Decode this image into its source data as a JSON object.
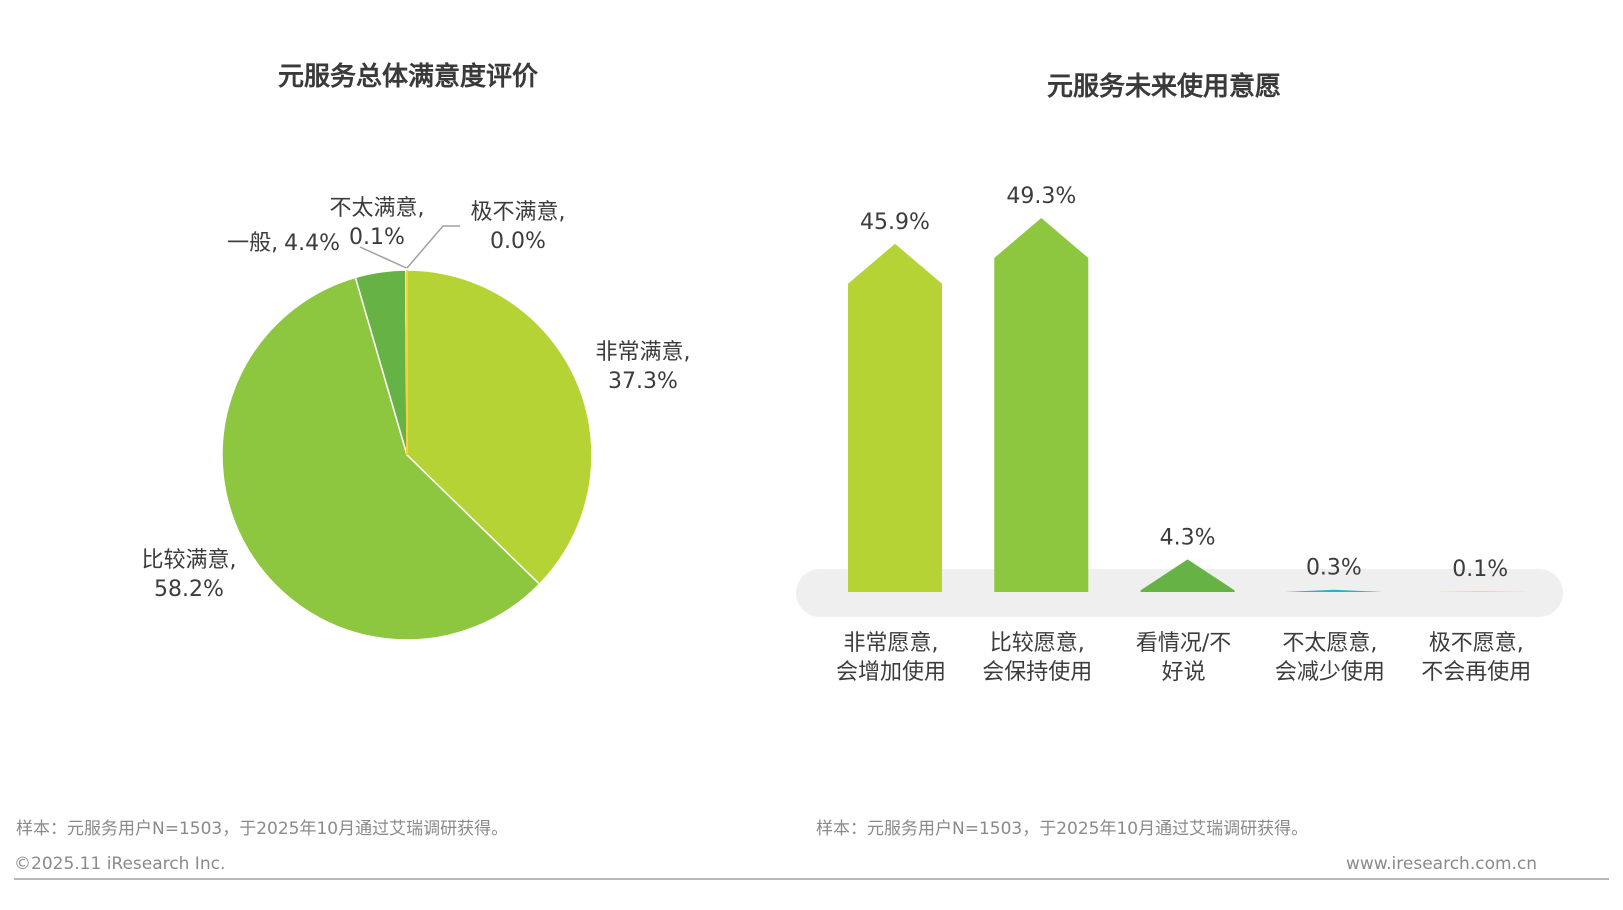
{
  "colors": {
    "very_satisfied": "#b5d334",
    "fairly_satisfied": "#8dc63f",
    "neutral": "#66b245",
    "not_satisfied": "#27b3c9",
    "very_unsatisfied": "#f6cf3c",
    "platform": "#efefef",
    "leader_line": "#a0a0a0"
  },
  "chart_data": [
    {
      "type": "pie",
      "title": "元服务总体满意度评价",
      "slices": [
        {
          "key": "very_satisfied",
          "name": "非常满意,",
          "value": 37.3,
          "value_label": "37.3%"
        },
        {
          "key": "fairly_satisfied",
          "name": "比较满意,",
          "value": 58.2,
          "value_label": "58.2%"
        },
        {
          "key": "neutral",
          "name": "一般,",
          "value": 4.4,
          "value_label": "4.4%"
        },
        {
          "key": "not_satisfied",
          "name": "不太满意,",
          "value": 0.1,
          "value_label": "0.1%"
        },
        {
          "key": "very_unsatisfied",
          "name": "极不满意,",
          "value": 0.0,
          "value_label": "0.0%"
        }
      ]
    },
    {
      "type": "bar",
      "title": "元服务未来使用意愿",
      "categories": [
        [
          "非常愿意,",
          "会增加使用"
        ],
        [
          "比较愿意,",
          "会保持使用"
        ],
        [
          "看情况/不",
          "好说"
        ],
        [
          "不太愿意,",
          "会减少使用"
        ],
        [
          "极不愿意,",
          "不会再使用"
        ]
      ],
      "values": [
        45.9,
        49.3,
        4.3,
        0.3,
        0.1
      ],
      "value_labels": [
        "45.9%",
        "49.3%",
        "4.3%",
        "0.3%",
        "0.1%"
      ],
      "bar_colors": [
        "#b5d334",
        "#8dc63f",
        "#66b245",
        "#27b3c9",
        "#f6cf3c"
      ],
      "ylim": [
        0,
        49.3
      ]
    }
  ],
  "notes": {
    "left": "样本：元服务用户N=1503，于2025年10月通过艾瑞调研获得。",
    "right": "样本：元服务用户N=1503，于2025年10月通过艾瑞调研获得。"
  },
  "footer": {
    "copyright": "©2025.11 iResearch Inc.",
    "website": "www.iresearch.com.cn"
  }
}
